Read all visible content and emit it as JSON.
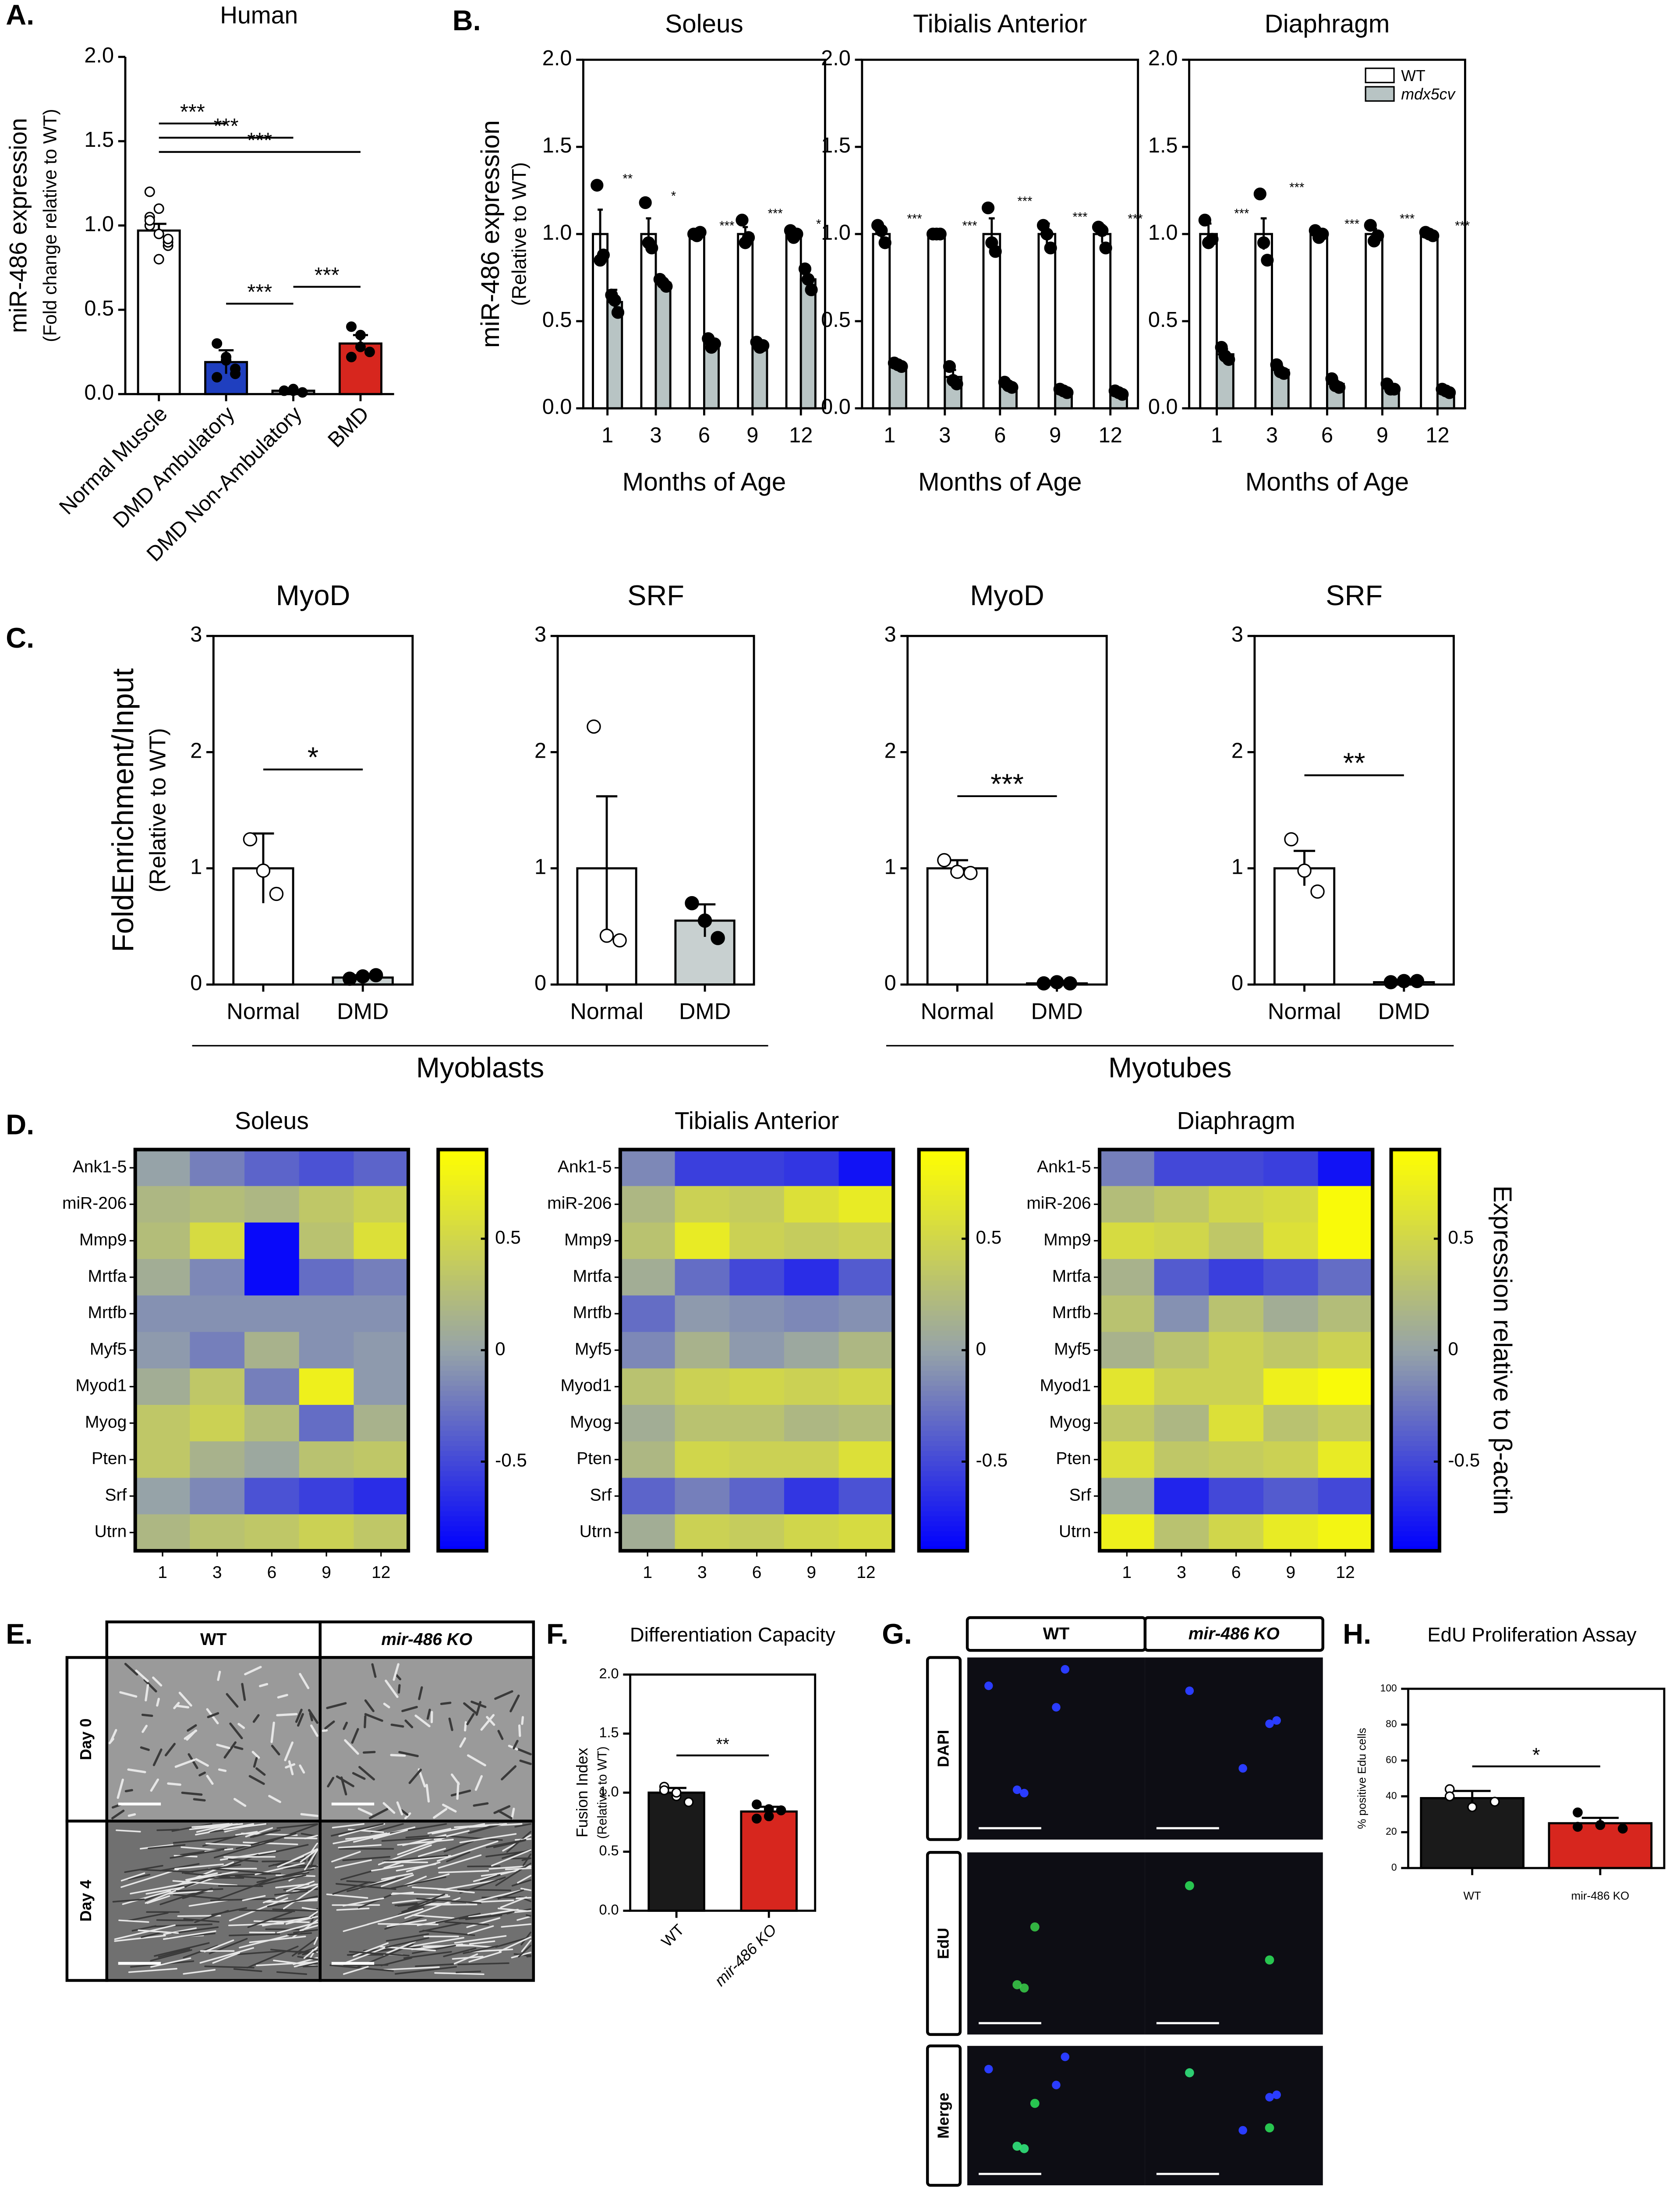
{
  "chart_data": [
    {
      "type": "bar",
      "panel": "A.",
      "title": "Human",
      "ylabel": "miR-486 expression",
      "ylabel_sub": "(Fold change relative to WT)",
      "categories": [
        "Normal Muscle",
        "DMD Ambulatory",
        "DMD Non-Ambulatory",
        "BMD"
      ],
      "values": [
        0.97,
        0.19,
        0.02,
        0.3
      ],
      "errors": [
        0.04,
        0.07,
        0.005,
        0.05
      ],
      "colors": [
        "#ffffff",
        "#1f3fbf",
        "#8a8a8a",
        "#d7261e"
      ],
      "points": [
        [
          1.05,
          0.95,
          0.88,
          1.2,
          1.1,
          0.9,
          1.0,
          0.8,
          0.92,
          1.03
        ],
        [
          0.3,
          0.22,
          0.15,
          0.1,
          0.2,
          0.12
        ],
        [
          0.02,
          0.03,
          0.01,
          0.02,
          0.02
        ],
        [
          0.4,
          0.28,
          0.25,
          0.22,
          0.35
        ]
      ],
      "ylim": [
        0,
        2
      ],
      "yticks": [
        {
          "value": 0,
          "label": "0.0"
        },
        {
          "value": 0.5,
          "label": "0.5"
        },
        {
          "value": 1,
          "label": "1.0"
        },
        {
          "value": 1.5,
          "label": "1.5"
        },
        {
          "value": 2,
          "label": "2.0"
        }
      ],
      "brackets": [
        {
          "label": "***",
          "from": 1,
          "to": 2
        },
        {
          "label": "***",
          "from": 2,
          "to": 3
        },
        {
          "label": "***",
          "from": 0,
          "to": 3
        },
        {
          "label": "***",
          "from": 0,
          "to": 2
        },
        {
          "label": "***",
          "from": 0,
          "to": 1
        }
      ]
    },
    {
      "type": "grouped-bar",
      "panel": "B.",
      "title": "Soleus",
      "ylabel": "miR-486 expression",
      "ylabel_sub": "(Relative to WT)",
      "xlabel": "Months of Age",
      "categories": [
        "1",
        "3",
        "6",
        "9",
        "12"
      ],
      "series": [
        {
          "color": "#ffffff",
          "values": [
            1,
            1,
            1,
            1,
            1
          ],
          "errors": [
            0.14,
            0.09,
            0.01,
            0.04,
            0.02
          ],
          "points": [
            [
              1.28,
              0.85,
              0.88
            ],
            [
              1.18,
              0.95,
              0.92
            ],
            [
              1.0,
              0.99,
              1.01
            ],
            [
              1.08,
              0.95,
              0.98
            ],
            [
              1.02,
              0.98,
              1.0
            ]
          ]
        },
        {
          "color": "#b8c4c4",
          "values": [
            0.61,
            0.72,
            0.37,
            0.36,
            0.74
          ],
          "errors": [
            0.07,
            0.02,
            0.04,
            0.02,
            0.06
          ],
          "points": [
            [
              0.65,
              0.62,
              0.55
            ],
            [
              0.74,
              0.72,
              0.7
            ],
            [
              0.4,
              0.35,
              0.37
            ],
            [
              0.38,
              0.35,
              0.36
            ],
            [
              0.8,
              0.74,
              0.68
            ]
          ]
        }
      ],
      "annotations": [
        "**",
        "*",
        "***",
        "***",
        "*"
      ],
      "ylim": [
        0,
        2
      ],
      "yticks": [
        {
          "value": 0,
          "label": "0.0"
        },
        {
          "value": 0.5,
          "label": "0.5"
        },
        {
          "value": 1,
          "label": "1.0"
        },
        {
          "value": 1.5,
          "label": "1.5"
        },
        {
          "value": 2,
          "label": "2.0"
        }
      ]
    },
    {
      "type": "grouped-bar",
      "title": "Tibialis Anterior",
      "xlabel": "Months of Age",
      "categories": [
        "1",
        "3",
        "6",
        "9",
        "12"
      ],
      "series": [
        {
          "color": "#ffffff",
          "values": [
            1,
            1,
            1,
            1,
            1
          ],
          "errors": [
            0.04,
            0.01,
            0.09,
            0.06,
            0.05
          ],
          "points": [
            [
              1.05,
              1.02,
              0.95
            ],
            [
              1.0,
              1.0,
              1.0
            ],
            [
              1.15,
              0.95,
              0.9
            ],
            [
              1.05,
              1.0,
              0.92
            ],
            [
              1.04,
              1.02,
              0.92
            ]
          ]
        },
        {
          "color": "#b8c4c4",
          "values": [
            0.25,
            0.18,
            0.13,
            0.1,
            0.09
          ],
          "errors": [
            0.01,
            0.04,
            0.02,
            0.01,
            0.01
          ],
          "points": [
            [
              0.26,
              0.25,
              0.24
            ],
            [
              0.24,
              0.16,
              0.14
            ],
            [
              0.15,
              0.13,
              0.12
            ],
            [
              0.11,
              0.1,
              0.09
            ],
            [
              0.1,
              0.09,
              0.08
            ]
          ]
        }
      ],
      "annotations": [
        "***",
        "***",
        "***",
        "***",
        "***"
      ],
      "ylim": [
        0,
        2
      ],
      "yticks": [
        {
          "value": 0,
          "label": "0.0"
        },
        {
          "value": 0.5,
          "label": "0.5"
        },
        {
          "value": 1,
          "label": "1.0"
        },
        {
          "value": 1.5,
          "label": "1.5"
        },
        {
          "value": 2,
          "label": "2.0"
        }
      ]
    },
    {
      "type": "grouped-bar",
      "title": "Diaphragm",
      "xlabel": "Months of Age",
      "legend": "upper right",
      "categories": [
        "1",
        "3",
        "6",
        "9",
        "12"
      ],
      "series": [
        {
          "name": "WT",
          "color": "#ffffff",
          "values": [
            1,
            1,
            1,
            1,
            1
          ],
          "errors": [
            0.06,
            0.09,
            0.02,
            0.03,
            0.01
          ],
          "points": [
            [
              1.08,
              0.95,
              0.97
            ],
            [
              1.23,
              0.95,
              0.85
            ],
            [
              1.02,
              0.98,
              1.0
            ],
            [
              1.05,
              0.96,
              0.99
            ],
            [
              1.01,
              1.0,
              0.99
            ]
          ]
        },
        {
          "name": "mdx5cv",
          "color": "#b8c4c4",
          "values": [
            0.31,
            0.22,
            0.14,
            0.12,
            0.1
          ],
          "errors": [
            0.03,
            0.02,
            0.02,
            0.01,
            0.01
          ],
          "points": [
            [
              0.35,
              0.3,
              0.28
            ],
            [
              0.25,
              0.21,
              0.2
            ],
            [
              0.17,
              0.13,
              0.12
            ],
            [
              0.14,
              0.11,
              0.11
            ],
            [
              0.11,
              0.1,
              0.09
            ]
          ]
        }
      ],
      "annotations": [
        "***",
        "***",
        "***",
        "***",
        "***"
      ],
      "ylim": [
        0,
        2
      ],
      "yticks": [
        {
          "value": 0,
          "label": "0.0"
        },
        {
          "value": 0.5,
          "label": "0.5"
        },
        {
          "value": 1,
          "label": "1.0"
        },
        {
          "value": 1.5,
          "label": "1.5"
        },
        {
          "value": 2,
          "label": "2.0"
        }
      ]
    },
    {
      "type": "bar",
      "panel": "C.",
      "title": "MyoD",
      "ylabel": "FoldEnrichment/Input",
      "ylabel_sub": "(Relative to WT)",
      "group_label": "Myoblasts",
      "categories": [
        "Normal",
        "DMD"
      ],
      "values": [
        1,
        0.06
      ],
      "errors": [
        0.3,
        0.02
      ],
      "colors": [
        "#ffffff",
        "#c8d0d0"
      ],
      "points": [
        [
          1.25,
          0.98,
          0.78
        ],
        [
          0.05,
          0.07,
          0.08
        ]
      ],
      "ylim": [
        0,
        3
      ],
      "yticks": [
        0,
        1,
        2,
        3
      ],
      "brackets": [
        {
          "label": "*",
          "from": 0,
          "to": 1
        }
      ]
    },
    {
      "type": "bar",
      "title": "SRF",
      "categories": [
        "Normal",
        "DMD"
      ],
      "values": [
        1,
        0.55
      ],
      "errors": [
        0.62,
        0.14
      ],
      "colors": [
        "#ffffff",
        "#c8d0d0"
      ],
      "points": [
        [
          2.22,
          0.42,
          0.38
        ],
        [
          0.7,
          0.55,
          0.4
        ]
      ],
      "ylim": [
        0,
        3
      ],
      "yticks": [
        0,
        1,
        2,
        3
      ]
    },
    {
      "type": "bar",
      "title": "MyoD",
      "group_label": "Myotubes",
      "categories": [
        "Normal",
        "DMD"
      ],
      "values": [
        1,
        0.01
      ],
      "errors": [
        0.07,
        0.01
      ],
      "colors": [
        "#ffffff",
        "#c8d0d0"
      ],
      "points": [
        [
          1.07,
          0.97,
          0.96
        ],
        [
          0.01,
          0.02,
          0.01
        ]
      ],
      "ylim": [
        0,
        3
      ],
      "yticks": [
        0,
        1,
        2,
        3
      ],
      "brackets": [
        {
          "label": "***",
          "from": 0,
          "to": 1
        }
      ]
    },
    {
      "type": "bar",
      "title": "SRF",
      "categories": [
        "Normal",
        "DMD"
      ],
      "values": [
        1,
        0.02
      ],
      "errors": [
        0.15,
        0.01
      ],
      "colors": [
        "#ffffff",
        "#c8d0d0"
      ],
      "points": [
        [
          1.25,
          0.98,
          0.8
        ],
        [
          0.02,
          0.03,
          0.03
        ]
      ],
      "ylim": [
        0,
        3
      ],
      "yticks": [
        0,
        1,
        2,
        3
      ],
      "brackets": [
        {
          "label": "**",
          "from": 0,
          "to": 1
        }
      ]
    },
    {
      "type": "heatmap",
      "panel": "D.",
      "title": "Soleus",
      "rows": [
        "Ank1-5",
        "miR-206",
        "Mmp9",
        "Mrtfa",
        "Mrtfb",
        "Myf5",
        "Myod1",
        "Myog",
        "Pten",
        "Srf",
        "Utrn"
      ],
      "columns": [
        "1",
        "3",
        "6",
        "9",
        "12"
      ],
      "values": [
        [
          0.0,
          -0.2,
          -0.35,
          -0.45,
          -0.35
        ],
        [
          0.2,
          0.25,
          0.2,
          0.35,
          0.45
        ],
        [
          0.25,
          0.55,
          -0.85,
          0.3,
          0.6
        ],
        [
          0.1,
          -0.15,
          -0.85,
          -0.3,
          -0.2
        ],
        [
          -0.1,
          -0.1,
          -0.1,
          -0.1,
          -0.1
        ],
        [
          -0.05,
          -0.2,
          0.15,
          -0.1,
          -0.05
        ],
        [
          0.1,
          0.35,
          -0.2,
          0.75,
          -0.05
        ],
        [
          0.35,
          0.45,
          0.25,
          -0.3,
          0.15
        ],
        [
          0.35,
          0.15,
          0.05,
          0.3,
          0.35
        ],
        [
          0.0,
          -0.15,
          -0.45,
          -0.55,
          -0.65
        ],
        [
          0.2,
          0.3,
          0.35,
          0.45,
          0.35
        ]
      ],
      "zlim": [
        -0.9,
        0.9
      ],
      "zticks": [
        0.5,
        0,
        -0.5
      ]
    },
    {
      "type": "heatmap",
      "title": "Tibialis Anterior",
      "rows": [
        "Ank1-5",
        "miR-206",
        "Mmp9",
        "Mrtfa",
        "Mrtfb",
        "Myf5",
        "Myod1",
        "Myog",
        "Pten",
        "Srf",
        "Utrn"
      ],
      "columns": [
        "1",
        "3",
        "6",
        "9",
        "12"
      ],
      "values": [
        [
          -0.15,
          -0.55,
          -0.55,
          -0.6,
          -0.8
        ],
        [
          0.2,
          0.45,
          0.4,
          0.6,
          0.7
        ],
        [
          0.3,
          0.7,
          0.45,
          0.4,
          0.45
        ],
        [
          0.1,
          -0.3,
          -0.5,
          -0.65,
          -0.4
        ],
        [
          -0.3,
          -0.05,
          -0.1,
          -0.15,
          -0.1
        ],
        [
          -0.15,
          0.15,
          -0.05,
          0.05,
          0.2
        ],
        [
          0.3,
          0.45,
          0.5,
          0.45,
          0.5
        ],
        [
          0.1,
          0.3,
          0.3,
          0.2,
          0.25
        ],
        [
          0.2,
          0.5,
          0.45,
          0.45,
          0.6
        ],
        [
          -0.35,
          -0.2,
          -0.35,
          -0.6,
          -0.45
        ],
        [
          0.1,
          0.45,
          0.4,
          0.5,
          0.55
        ]
      ],
      "zlim": [
        -0.9,
        0.9
      ],
      "zticks": [
        0.5,
        0,
        -0.5
      ]
    },
    {
      "type": "heatmap",
      "title": "Diaphragm",
      "colorbar_label": "Expression relative to β-actin",
      "rows": [
        "Ank1-5",
        "miR-206",
        "Mmp9",
        "Mrtfa",
        "Mrtfb",
        "Myf5",
        "Myod1",
        "Myog",
        "Pten",
        "Srf",
        "Utrn"
      ],
      "columns": [
        "1",
        "3",
        "6",
        "9",
        "12"
      ],
      "values": [
        [
          -0.2,
          -0.5,
          -0.5,
          -0.55,
          -0.8
        ],
        [
          0.25,
          0.35,
          0.5,
          0.55,
          0.85
        ],
        [
          0.55,
          0.5,
          0.35,
          0.6,
          0.85
        ],
        [
          0.15,
          -0.4,
          -0.55,
          -0.45,
          -0.3
        ],
        [
          0.3,
          -0.1,
          0.3,
          0.1,
          0.25
        ],
        [
          0.15,
          0.3,
          0.45,
          0.35,
          0.45
        ],
        [
          0.65,
          0.45,
          0.45,
          0.75,
          0.85
        ],
        [
          0.35,
          0.2,
          0.6,
          0.3,
          0.4
        ],
        [
          0.6,
          0.35,
          0.4,
          0.45,
          0.7
        ],
        [
          0.05,
          -0.7,
          -0.5,
          -0.4,
          -0.5
        ],
        [
          0.75,
          0.3,
          0.5,
          0.7,
          0.8
        ]
      ],
      "zlim": [
        -0.9,
        0.9
      ],
      "zticks": [
        0.5,
        0,
        -0.5
      ]
    },
    {
      "type": "bar",
      "panel": "F.",
      "title": "Differentiation Capacity",
      "ylabel": "Fusion Index",
      "ylabel_sub": "(Relative to WT)",
      "categories": [
        "WT",
        "mir-486 KO"
      ],
      "values": [
        1.0,
        0.84
      ],
      "errors": [
        0.04,
        0.04
      ],
      "colors": [
        "#1a1a1a",
        "#d7261e"
      ],
      "points": [
        [
          1.05,
          0.97,
          0.92,
          1.02,
          1.0
        ],
        [
          0.9,
          0.8,
          0.85,
          0.78,
          0.86
        ]
      ],
      "ylim": [
        0,
        2
      ],
      "yticks": [
        {
          "value": 0,
          "label": "0.0"
        },
        {
          "value": 0.5,
          "label": "0.5"
        },
        {
          "value": 1,
          "label": "1.0"
        },
        {
          "value": 1.5,
          "label": "1.5"
        },
        {
          "value": 2,
          "label": "2.0"
        }
      ],
      "brackets": [
        {
          "label": "**",
          "from": 0,
          "to": 1
        }
      ]
    },
    {
      "type": "bar",
      "panel": "H.",
      "title": "EdU Proliferation Assay",
      "ylabel": "% positive Edu cells",
      "categories": [
        "WT",
        "mir-486 KO"
      ],
      "values": [
        39,
        25
      ],
      "errors": [
        4,
        3
      ],
      "colors": [
        "#1a1a1a",
        "#d7261e"
      ],
      "points": [
        [
          44,
          34,
          37,
          40
        ],
        [
          31,
          24,
          22,
          23
        ]
      ],
      "ylim": [
        0,
        100
      ],
      "yticks": [
        0,
        20,
        40,
        60,
        80,
        100
      ],
      "brackets": [
        {
          "label": "*",
          "from": 0,
          "to": 1
        }
      ]
    }
  ],
  "image_panels": [
    {
      "panel": "E.",
      "columns": [
        "WT",
        "mir-486 KO"
      ],
      "rows": [
        "Day 0",
        "Day 4"
      ]
    },
    {
      "panel": "G.",
      "columns": [
        "WT",
        "mir-486 KO"
      ],
      "rows": [
        "DAPI",
        "EdU",
        "Merge"
      ]
    }
  ]
}
